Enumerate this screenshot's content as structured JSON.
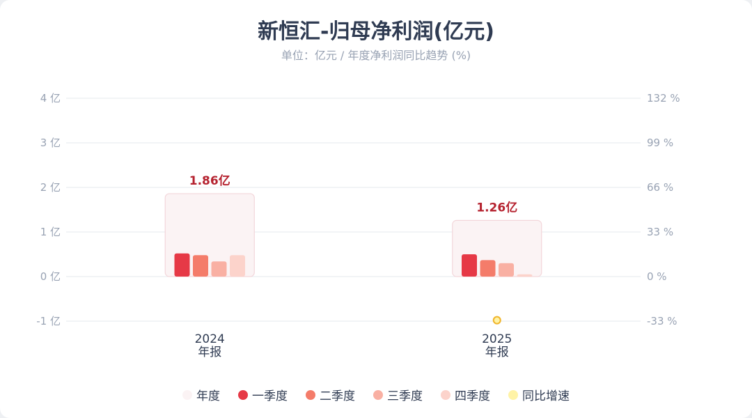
{
  "title": "新恒汇-归母净利润(亿元)",
  "subtitle": "单位：亿元 / 年度净利润同比趋势 (%)",
  "colors": {
    "annual": "#fbf3f4",
    "annual_border": "#f3d6da",
    "q1": "#e63946",
    "q2": "#f47c6a",
    "q3": "#f9b0a3",
    "q4": "#fcd3cb",
    "yoy": "#fff3a6",
    "yoy_stroke": "#f0b429",
    "label": "#b5222f"
  },
  "chart_data": {
    "type": "bar",
    "categories": [
      "2024\n年报",
      "2025\n年报"
    ],
    "left_axis": {
      "unit": "亿",
      "ylim": [
        -1,
        4
      ],
      "ticks": [
        "-1 亿",
        "0 亿",
        "1 亿",
        "2 亿",
        "3 亿",
        "4 亿"
      ]
    },
    "right_axis": {
      "unit": "%",
      "ylim": [
        -33,
        132
      ],
      "ticks": [
        "-33 %",
        "0 %",
        "33 %",
        "66 %",
        "99 %",
        "132 %"
      ]
    },
    "series": [
      {
        "name": "年度",
        "values": [
          1.86,
          1.26
        ],
        "labels": [
          "1.86亿",
          "1.26亿"
        ]
      },
      {
        "name": "一季度",
        "values": [
          0.52,
          0.5
        ]
      },
      {
        "name": "二季度",
        "values": [
          0.48,
          0.37
        ]
      },
      {
        "name": "三季度",
        "values": [
          0.34,
          0.3
        ]
      },
      {
        "name": "四季度",
        "values": [
          0.48,
          0.05
        ]
      },
      {
        "name": "同比增速",
        "axis": "right",
        "values": [
          null,
          -32.3
        ]
      }
    ],
    "legend_position": "bottom",
    "grid": true
  }
}
